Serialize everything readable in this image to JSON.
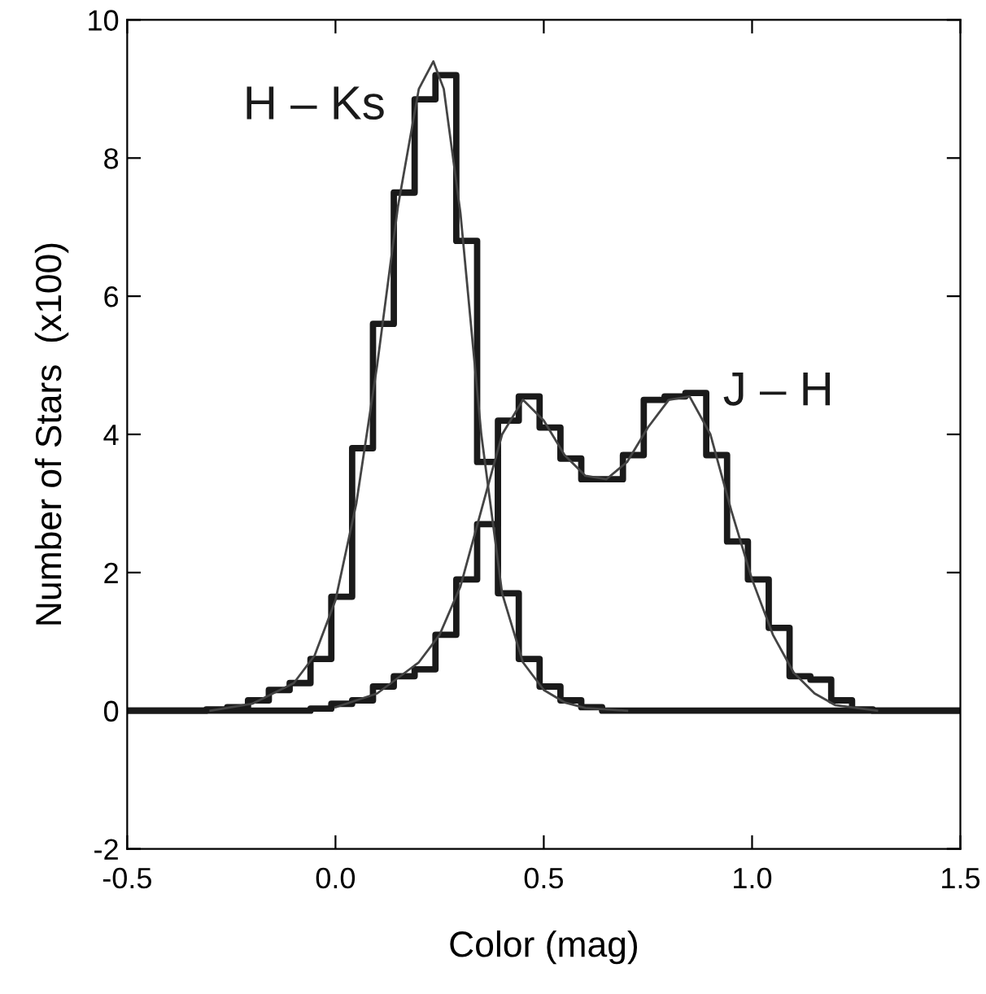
{
  "chart_data": {
    "type": "step",
    "xlabel": "Color (mag)",
    "ylabel": "Number of Stars  (x100)",
    "xlim": [
      -0.5,
      1.5
    ],
    "xticks": [
      -0.5,
      {
        "value": 0,
        "label": "0.0"
      },
      0.5,
      {
        "value": 1,
        "label": "1.0"
      },
      1.5
    ],
    "ylim": [
      -2,
      10
    ],
    "yticks": [
      -2,
      0,
      2,
      4,
      6,
      8,
      10
    ],
    "grid": false,
    "legend": false,
    "series": [
      {
        "name": "H – Ks",
        "color": "#1a1a1a",
        "x": [
          -0.5,
          -0.31,
          -0.26,
          -0.21,
          -0.16,
          -0.11,
          -0.06,
          -0.01,
          0.04,
          0.09,
          0.14,
          0.19,
          0.24,
          0.29,
          0.34,
          0.39,
          0.44,
          0.49,
          0.54,
          0.59,
          0.64,
          1.5
        ],
        "values": [
          0,
          0.02,
          0.05,
          0.15,
          0.3,
          0.4,
          0.75,
          1.65,
          3.8,
          5.6,
          7.5,
          8.85,
          9.2,
          6.8,
          3.6,
          1.7,
          0.75,
          0.35,
          0.15,
          0.05,
          0,
          0
        ]
      },
      {
        "name": "J – H",
        "color": "#1a1a1a",
        "x": [
          -0.5,
          -0.06,
          -0.01,
          0.04,
          0.09,
          0.14,
          0.19,
          0.24,
          0.29,
          0.34,
          0.39,
          0.44,
          0.49,
          0.54,
          0.59,
          0.64,
          0.69,
          0.74,
          0.79,
          0.84,
          0.89,
          0.94,
          0.99,
          1.04,
          1.09,
          1.14,
          1.19,
          1.24,
          1.29,
          1.5
        ],
        "values": [
          0,
          0.03,
          0.1,
          0.15,
          0.35,
          0.5,
          0.6,
          1.1,
          1.9,
          2.7,
          4.2,
          4.55,
          4.1,
          3.65,
          3.35,
          3.35,
          3.7,
          4.5,
          4.55,
          4.6,
          3.7,
          2.45,
          1.9,
          1.2,
          0.5,
          0.45,
          0.15,
          0.02,
          0,
          0
        ]
      },
      {
        "type": "line",
        "color": "#444444",
        "x": [
          -0.3,
          -0.2,
          -0.1,
          -0.05,
          0,
          0.05,
          0.1,
          0.15,
          0.2,
          0.235,
          0.26,
          0.3,
          0.35,
          0.4,
          0.45,
          0.5,
          0.55,
          0.6,
          0.7
        ],
        "values": [
          0,
          0.1,
          0.4,
          0.8,
          1.6,
          3.0,
          5.0,
          7.3,
          9.0,
          9.4,
          9.0,
          7.2,
          4.0,
          1.7,
          0.7,
          0.3,
          0.12,
          0.04,
          0
        ]
      },
      {
        "type": "line",
        "color": "#444444",
        "x": [
          0,
          0.1,
          0.2,
          0.25,
          0.3,
          0.35,
          0.4,
          0.45,
          0.5,
          0.55,
          0.6,
          0.65,
          0.7,
          0.75,
          0.8,
          0.85,
          0.9,
          0.95,
          1.0,
          1.05,
          1.1,
          1.15,
          1.2,
          1.3
        ],
        "values": [
          0.05,
          0.25,
          0.7,
          1.1,
          1.8,
          2.9,
          4.0,
          4.5,
          4.2,
          3.7,
          3.4,
          3.35,
          3.6,
          4.1,
          4.5,
          4.55,
          4.0,
          2.9,
          1.9,
          1.1,
          0.55,
          0.25,
          0.08,
          0
        ]
      }
    ]
  }
}
